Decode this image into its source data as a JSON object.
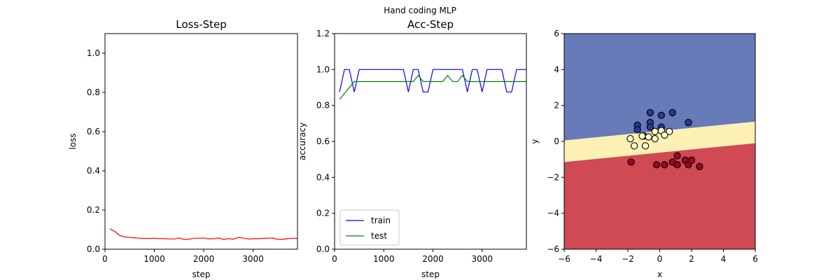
{
  "suptitle": "Hand coding MLP",
  "chart_data": [
    {
      "type": "line",
      "title": "Loss-Step",
      "xlabel": "step",
      "ylabel": "loss",
      "xlim": [
        0,
        3900
      ],
      "ylim": [
        0,
        1.1
      ],
      "xticks": [
        "0",
        "1000",
        "2000",
        "3000"
      ],
      "yticks": [
        "0.0",
        "0.2",
        "0.4",
        "0.6",
        "0.8",
        "1.0"
      ],
      "series": [
        {
          "color": "#ff0000",
          "x": [
            100,
            200,
            300,
            400,
            500,
            600,
            700,
            800,
            900,
            1000,
            1100,
            1200,
            1300,
            1400,
            1500,
            1600,
            1700,
            1800,
            1900,
            2000,
            2100,
            2200,
            2300,
            2400,
            2500,
            2600,
            2700,
            2800,
            2900,
            3000,
            3100,
            3200,
            3300,
            3400,
            3500,
            3600,
            3700,
            3800,
            3900
          ],
          "y": [
            0.104,
            0.09,
            0.07,
            0.063,
            0.06,
            0.058,
            0.056,
            0.055,
            0.055,
            0.056,
            0.054,
            0.054,
            0.052,
            0.052,
            0.057,
            0.05,
            0.051,
            0.056,
            0.056,
            0.057,
            0.053,
            0.053,
            0.057,
            0.05,
            0.054,
            0.051,
            0.06,
            0.057,
            0.052,
            0.053,
            0.054,
            0.055,
            0.056,
            0.057,
            0.05,
            0.05,
            0.054,
            0.056,
            0.055
          ]
        }
      ]
    },
    {
      "type": "line",
      "title": "Acc-Step",
      "xlabel": "step",
      "ylabel": "accuracy",
      "xlim": [
        0,
        3900
      ],
      "ylim": [
        0,
        1.2
      ],
      "xticks": [
        "0",
        "1000",
        "2000",
        "3000"
      ],
      "yticks": [
        "0.0",
        "0.2",
        "0.4",
        "0.6",
        "0.8",
        "1.0",
        "1.2"
      ],
      "legend": "lower-left",
      "series": [
        {
          "name": "train",
          "color": "#0000ff",
          "x": [
            100,
            200,
            300,
            400,
            500,
            600,
            700,
            800,
            900,
            1000,
            1100,
            1200,
            1300,
            1400,
            1500,
            1600,
            1700,
            1800,
            1900,
            2000,
            2100,
            2200,
            2300,
            2400,
            2500,
            2600,
            2700,
            2800,
            2900,
            3000,
            3100,
            3200,
            3300,
            3400,
            3500,
            3600,
            3700,
            3800,
            3900
          ],
          "y": [
            0.875,
            1.0,
            1.0,
            0.875,
            1.0,
            1.0,
            1.0,
            1.0,
            1.0,
            1.0,
            1.0,
            1.0,
            1.0,
            1.0,
            0.875,
            1.0,
            1.0,
            0.875,
            0.875,
            1.0,
            1.0,
            1.0,
            1.0,
            1.0,
            1.0,
            1.0,
            0.875,
            1.0,
            1.0,
            0.875,
            1.0,
            1.0,
            1.0,
            1.0,
            0.875,
            0.875,
            1.0,
            1.0,
            1.0
          ]
        },
        {
          "name": "test",
          "color": "#008000",
          "x": [
            100,
            200,
            300,
            400,
            500,
            600,
            700,
            800,
            900,
            1000,
            1100,
            1200,
            1300,
            1400,
            1500,
            1600,
            1700,
            1800,
            1900,
            2000,
            2100,
            2200,
            2300,
            2400,
            2500,
            2600,
            2700,
            2800,
            2900,
            3000,
            3100,
            3200,
            3300,
            3400,
            3500,
            3600,
            3700,
            3800,
            3900
          ],
          "y": [
            0.833,
            0.867,
            0.9,
            0.933,
            0.933,
            0.933,
            0.933,
            0.933,
            0.933,
            0.933,
            0.933,
            0.933,
            0.933,
            0.933,
            0.933,
            0.933,
            0.967,
            0.933,
            0.933,
            0.933,
            0.933,
            0.933,
            0.967,
            0.933,
            0.933,
            0.967,
            0.933,
            0.933,
            0.933,
            0.933,
            0.933,
            0.933,
            0.933,
            0.933,
            0.933,
            0.933,
            0.933,
            0.933,
            0.933
          ]
        }
      ]
    },
    {
      "type": "scatter",
      "xlabel": "x",
      "ylabel": "y",
      "xlim": [
        -6,
        6
      ],
      "ylim": [
        -6,
        6
      ],
      "xticks": [
        "−6",
        "−4",
        "−2",
        "0",
        "2",
        "4",
        "6"
      ],
      "yticks": [
        "−6",
        "−4",
        "−2",
        "0",
        "2",
        "4",
        "6"
      ],
      "regions": [
        {
          "class": 0,
          "color": "#667bb8",
          "boundary_top_left_y": 6,
          "boundary_top_right_y": 6,
          "boundary_bottom_left_y": 0.05,
          "boundary_bottom_right_y": 1.1
        },
        {
          "class": 1,
          "color": "#fcf0b4",
          "boundary_top_left_y": 0.05,
          "boundary_top_right_y": 1.1,
          "boundary_bottom_left_y": -1.15,
          "boundary_bottom_right_y": -0.1
        },
        {
          "class": 2,
          "color": "#cf4a53",
          "boundary_top_left_y": -1.15,
          "boundary_top_right_y": -0.1,
          "boundary_bottom_left_y": -6,
          "boundary_bottom_right_y": -6
        }
      ],
      "series": [
        {
          "class": 0,
          "color": "#313695",
          "points": [
            [
              -0.6,
              1.6
            ],
            [
              0.1,
              1.45
            ],
            [
              0.8,
              1.6
            ],
            [
              -1.4,
              0.9
            ],
            [
              -0.6,
              1.05
            ],
            [
              -1.4,
              0.65
            ],
            [
              -0.6,
              0.8
            ],
            [
              0.1,
              0.8
            ],
            [
              1.8,
              1.05
            ],
            [
              -1.0,
              0.3
            ]
          ]
        },
        {
          "class": 1,
          "color": "#ffffcc",
          "points": [
            [
              -0.3,
              0.55
            ],
            [
              0.1,
              0.6
            ],
            [
              0.6,
              0.55
            ],
            [
              -1.1,
              0.3
            ],
            [
              -0.7,
              0.25
            ],
            [
              -0.3,
              0.15
            ],
            [
              0.3,
              0.35
            ],
            [
              -1.85,
              0.15
            ],
            [
              -1.6,
              -0.25
            ],
            [
              -0.9,
              -0.25
            ]
          ]
        },
        {
          "class": 2,
          "color": "#a50026",
          "points": [
            [
              -1.8,
              -1.15
            ],
            [
              -0.2,
              -1.3
            ],
            [
              0.3,
              -1.3
            ],
            [
              0.8,
              -1.15
            ],
            [
              1.1,
              -1.3
            ],
            [
              1.6,
              -1.05
            ],
            [
              1.8,
              -1.3
            ],
            [
              2.0,
              -1.05
            ],
            [
              2.5,
              -1.4
            ],
            [
              1.1,
              -0.8
            ]
          ]
        }
      ]
    }
  ]
}
